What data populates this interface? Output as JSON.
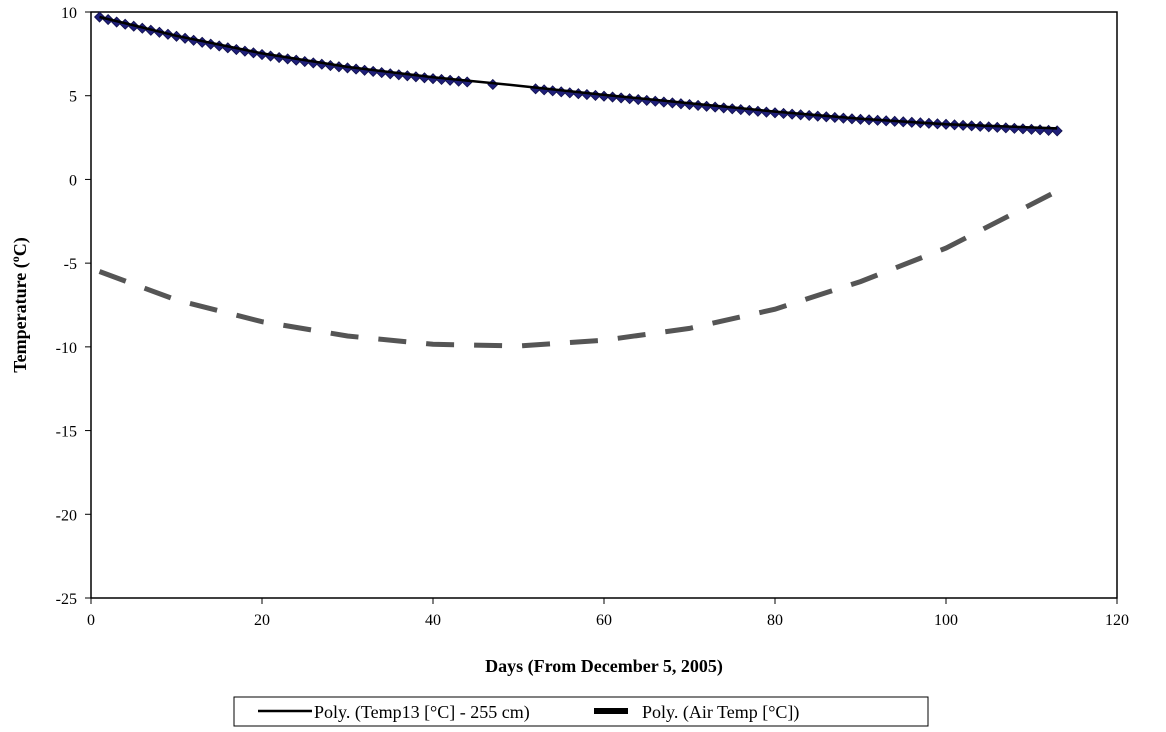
{
  "chart_data": {
    "type": "scatter",
    "title": "",
    "xlabel": "Days (From December 5, 2005)",
    "ylabel_main": "Temperature (",
    "ylabel_sup": "o",
    "ylabel_end": "C)",
    "xlim": [
      0,
      120
    ],
    "ylim": [
      -25,
      10
    ],
    "x_ticks": [
      0,
      20,
      40,
      60,
      80,
      100,
      120
    ],
    "y_ticks": [
      10,
      5,
      0,
      -5,
      -10,
      -15,
      -20,
      -25
    ],
    "grid": false,
    "legend_position": "bottom",
    "series": [
      {
        "kind": "markers",
        "marker": "diamond",
        "color": "#1f1f7a",
        "x": [
          1,
          2,
          3,
          4,
          5,
          6,
          7,
          8,
          9,
          10,
          11,
          12,
          13,
          14,
          15,
          16,
          17,
          18,
          19,
          20,
          21,
          22,
          23,
          24,
          25,
          26,
          27,
          28,
          29,
          30,
          31,
          32,
          33,
          34,
          35,
          36,
          37,
          38,
          39,
          40,
          41,
          42,
          43,
          44,
          47,
          52,
          53,
          54,
          55,
          56,
          57,
          58,
          59,
          60,
          61,
          62,
          63,
          64,
          65,
          66,
          67,
          68,
          69,
          70,
          71,
          72,
          73,
          74,
          75,
          76,
          77,
          78,
          79,
          80,
          81,
          82,
          83,
          84,
          85,
          86,
          87,
          88,
          89,
          90,
          91,
          92,
          93,
          94,
          95,
          96,
          97,
          98,
          99,
          100,
          101,
          102,
          103,
          104,
          105,
          106,
          107,
          108,
          109,
          110,
          111,
          112,
          113
        ],
        "y": [
          9.7,
          9.55,
          9.4,
          9.27,
          9.15,
          9.03,
          8.91,
          8.79,
          8.67,
          8.55,
          8.43,
          8.31,
          8.19,
          8.08,
          7.97,
          7.86,
          7.76,
          7.66,
          7.56,
          7.46,
          7.37,
          7.28,
          7.2,
          7.12,
          7.04,
          6.96,
          6.88,
          6.8,
          6.73,
          6.66,
          6.59,
          6.52,
          6.45,
          6.38,
          6.31,
          6.25,
          6.19,
          6.13,
          6.07,
          6.02,
          5.97,
          5.92,
          5.87,
          5.82,
          5.67,
          5.41,
          5.35,
          5.29,
          5.23,
          5.17,
          5.12,
          5.07,
          5.02,
          4.97,
          4.92,
          4.87,
          4.82,
          4.77,
          4.72,
          4.67,
          4.62,
          4.57,
          4.52,
          4.47,
          4.42,
          4.37,
          4.32,
          4.27,
          4.22,
          4.17,
          4.12,
          4.07,
          4.02,
          3.98,
          3.94,
          3.9,
          3.86,
          3.82,
          3.78,
          3.74,
          3.7,
          3.66,
          3.62,
          3.59,
          3.56,
          3.53,
          3.5,
          3.47,
          3.44,
          3.41,
          3.38,
          3.35,
          3.32,
          3.29,
          3.26,
          3.23,
          3.2,
          3.17,
          3.14,
          3.11,
          3.08,
          3.05,
          3.02,
          2.99,
          2.96,
          2.93,
          2.9
        ]
      },
      {
        "name": "Poly. (Temp13 [°C] - 255 cm)",
        "kind": "trend",
        "style": "solid",
        "color": "#000000",
        "x": [
          1,
          10,
          20,
          30,
          40,
          50,
          60,
          70,
          80,
          90,
          100,
          113
        ],
        "y": [
          9.7,
          8.58,
          7.53,
          6.72,
          6.1,
          5.6,
          5.05,
          4.55,
          4.05,
          3.62,
          3.3,
          3.05
        ]
      },
      {
        "name": "Poly. (Air Temp [°C])",
        "kind": "trend",
        "style": "dashed",
        "color": "#333333",
        "x": [
          1,
          10,
          20,
          30,
          40,
          50,
          60,
          70,
          80,
          90,
          100,
          113
        ],
        "y": [
          -5.5,
          -7.2,
          -8.5,
          -9.35,
          -9.85,
          -9.95,
          -9.6,
          -8.9,
          -7.75,
          -6.1,
          -4.1,
          -0.7
        ]
      }
    ],
    "legend": {
      "entries": [
        "Poly. (Temp13 [°C] - 255 cm)",
        "Poly. (Air Temp [°C])"
      ]
    }
  }
}
